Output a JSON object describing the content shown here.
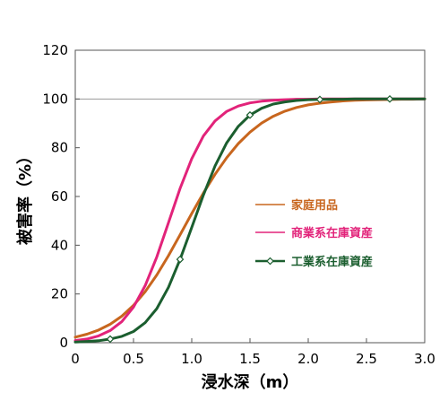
{
  "chart_data": {
    "type": "line",
    "xlabel": "浸水深（m）",
    "ylabel": "被害率（%）",
    "xlim": [
      0,
      3.0
    ],
    "ylim": [
      0,
      120
    ],
    "x_ticks": [
      "0",
      "0.5",
      "1.0",
      "1.5",
      "2.0",
      "2.5",
      "3.0"
    ],
    "y_ticks": [
      "0",
      "20",
      "40",
      "60",
      "80",
      "100",
      "120"
    ],
    "grid": false,
    "reference_line": 100,
    "legend_position": "center-right",
    "series": [
      {
        "name": "家庭用品",
        "color": "#c8661e",
        "marker": "none",
        "x": [
          0,
          0.1,
          0.2,
          0.3,
          0.4,
          0.5,
          0.6,
          0.7,
          0.8,
          0.9,
          1.0,
          1.1,
          1.2,
          1.3,
          1.4,
          1.5,
          1.6,
          1.7,
          1.8,
          1.9,
          2.0,
          2.1,
          2.2,
          2.3,
          2.4,
          2.5,
          2.6,
          2.7,
          2.8,
          2.9,
          3.0
        ],
        "y": [
          2.3,
          3.5,
          5.2,
          7.6,
          10.9,
          15.3,
          20.9,
          27.8,
          35.7,
          44.3,
          53.0,
          61.4,
          69.1,
          75.9,
          81.7,
          86.4,
          90.1,
          92.9,
          95.0,
          96.5,
          97.6,
          98.3,
          98.8,
          99.2,
          99.5,
          99.6,
          99.7,
          99.8,
          99.9,
          99.9,
          100
        ]
      },
      {
        "name": "商業系在庫資産",
        "color": "#e2237a",
        "marker": "none",
        "x": [
          0,
          0.1,
          0.2,
          0.3,
          0.4,
          0.5,
          0.6,
          0.7,
          0.8,
          0.9,
          1.0,
          1.1,
          1.2,
          1.3,
          1.4,
          1.5,
          1.6,
          1.7,
          1.8,
          1.9,
          2.0,
          2.1,
          2.2,
          2.3,
          2.4,
          2.5,
          2.6,
          2.7,
          2.8,
          2.9,
          3.0
        ],
        "y": [
          0.9,
          1.5,
          2.8,
          5.0,
          8.7,
          14.6,
          23.4,
          35.2,
          49.2,
          63.3,
          75.5,
          84.8,
          91.0,
          94.9,
          97.1,
          98.4,
          99.1,
          99.5,
          99.7,
          99.9,
          99.9,
          100,
          100,
          100,
          100,
          100,
          100,
          100,
          100,
          100,
          100
        ]
      },
      {
        "name": "工業系在庫資産",
        "color": "#1b5e2f",
        "marker": "diamond",
        "marker_indices": [
          3,
          9,
          15,
          21,
          27
        ],
        "x": [
          0,
          0.1,
          0.2,
          0.3,
          0.4,
          0.5,
          0.6,
          0.7,
          0.8,
          0.9,
          1.0,
          1.1,
          1.2,
          1.3,
          1.4,
          1.5,
          1.6,
          1.7,
          1.8,
          1.9,
          2.0,
          2.1,
          2.2,
          2.3,
          2.4,
          2.5,
          2.6,
          2.7,
          2.8,
          2.9,
          3.0
        ],
        "y": [
          0.3,
          0.5,
          0.8,
          1.5,
          2.6,
          4.6,
          8.2,
          14.0,
          22.7,
          34.2,
          47.3,
          60.6,
          72.5,
          82.0,
          88.8,
          93.4,
          96.2,
          97.9,
          98.8,
          99.4,
          99.7,
          99.8,
          99.9,
          99.9,
          100,
          100,
          100,
          100,
          100,
          100,
          100
        ]
      }
    ]
  }
}
